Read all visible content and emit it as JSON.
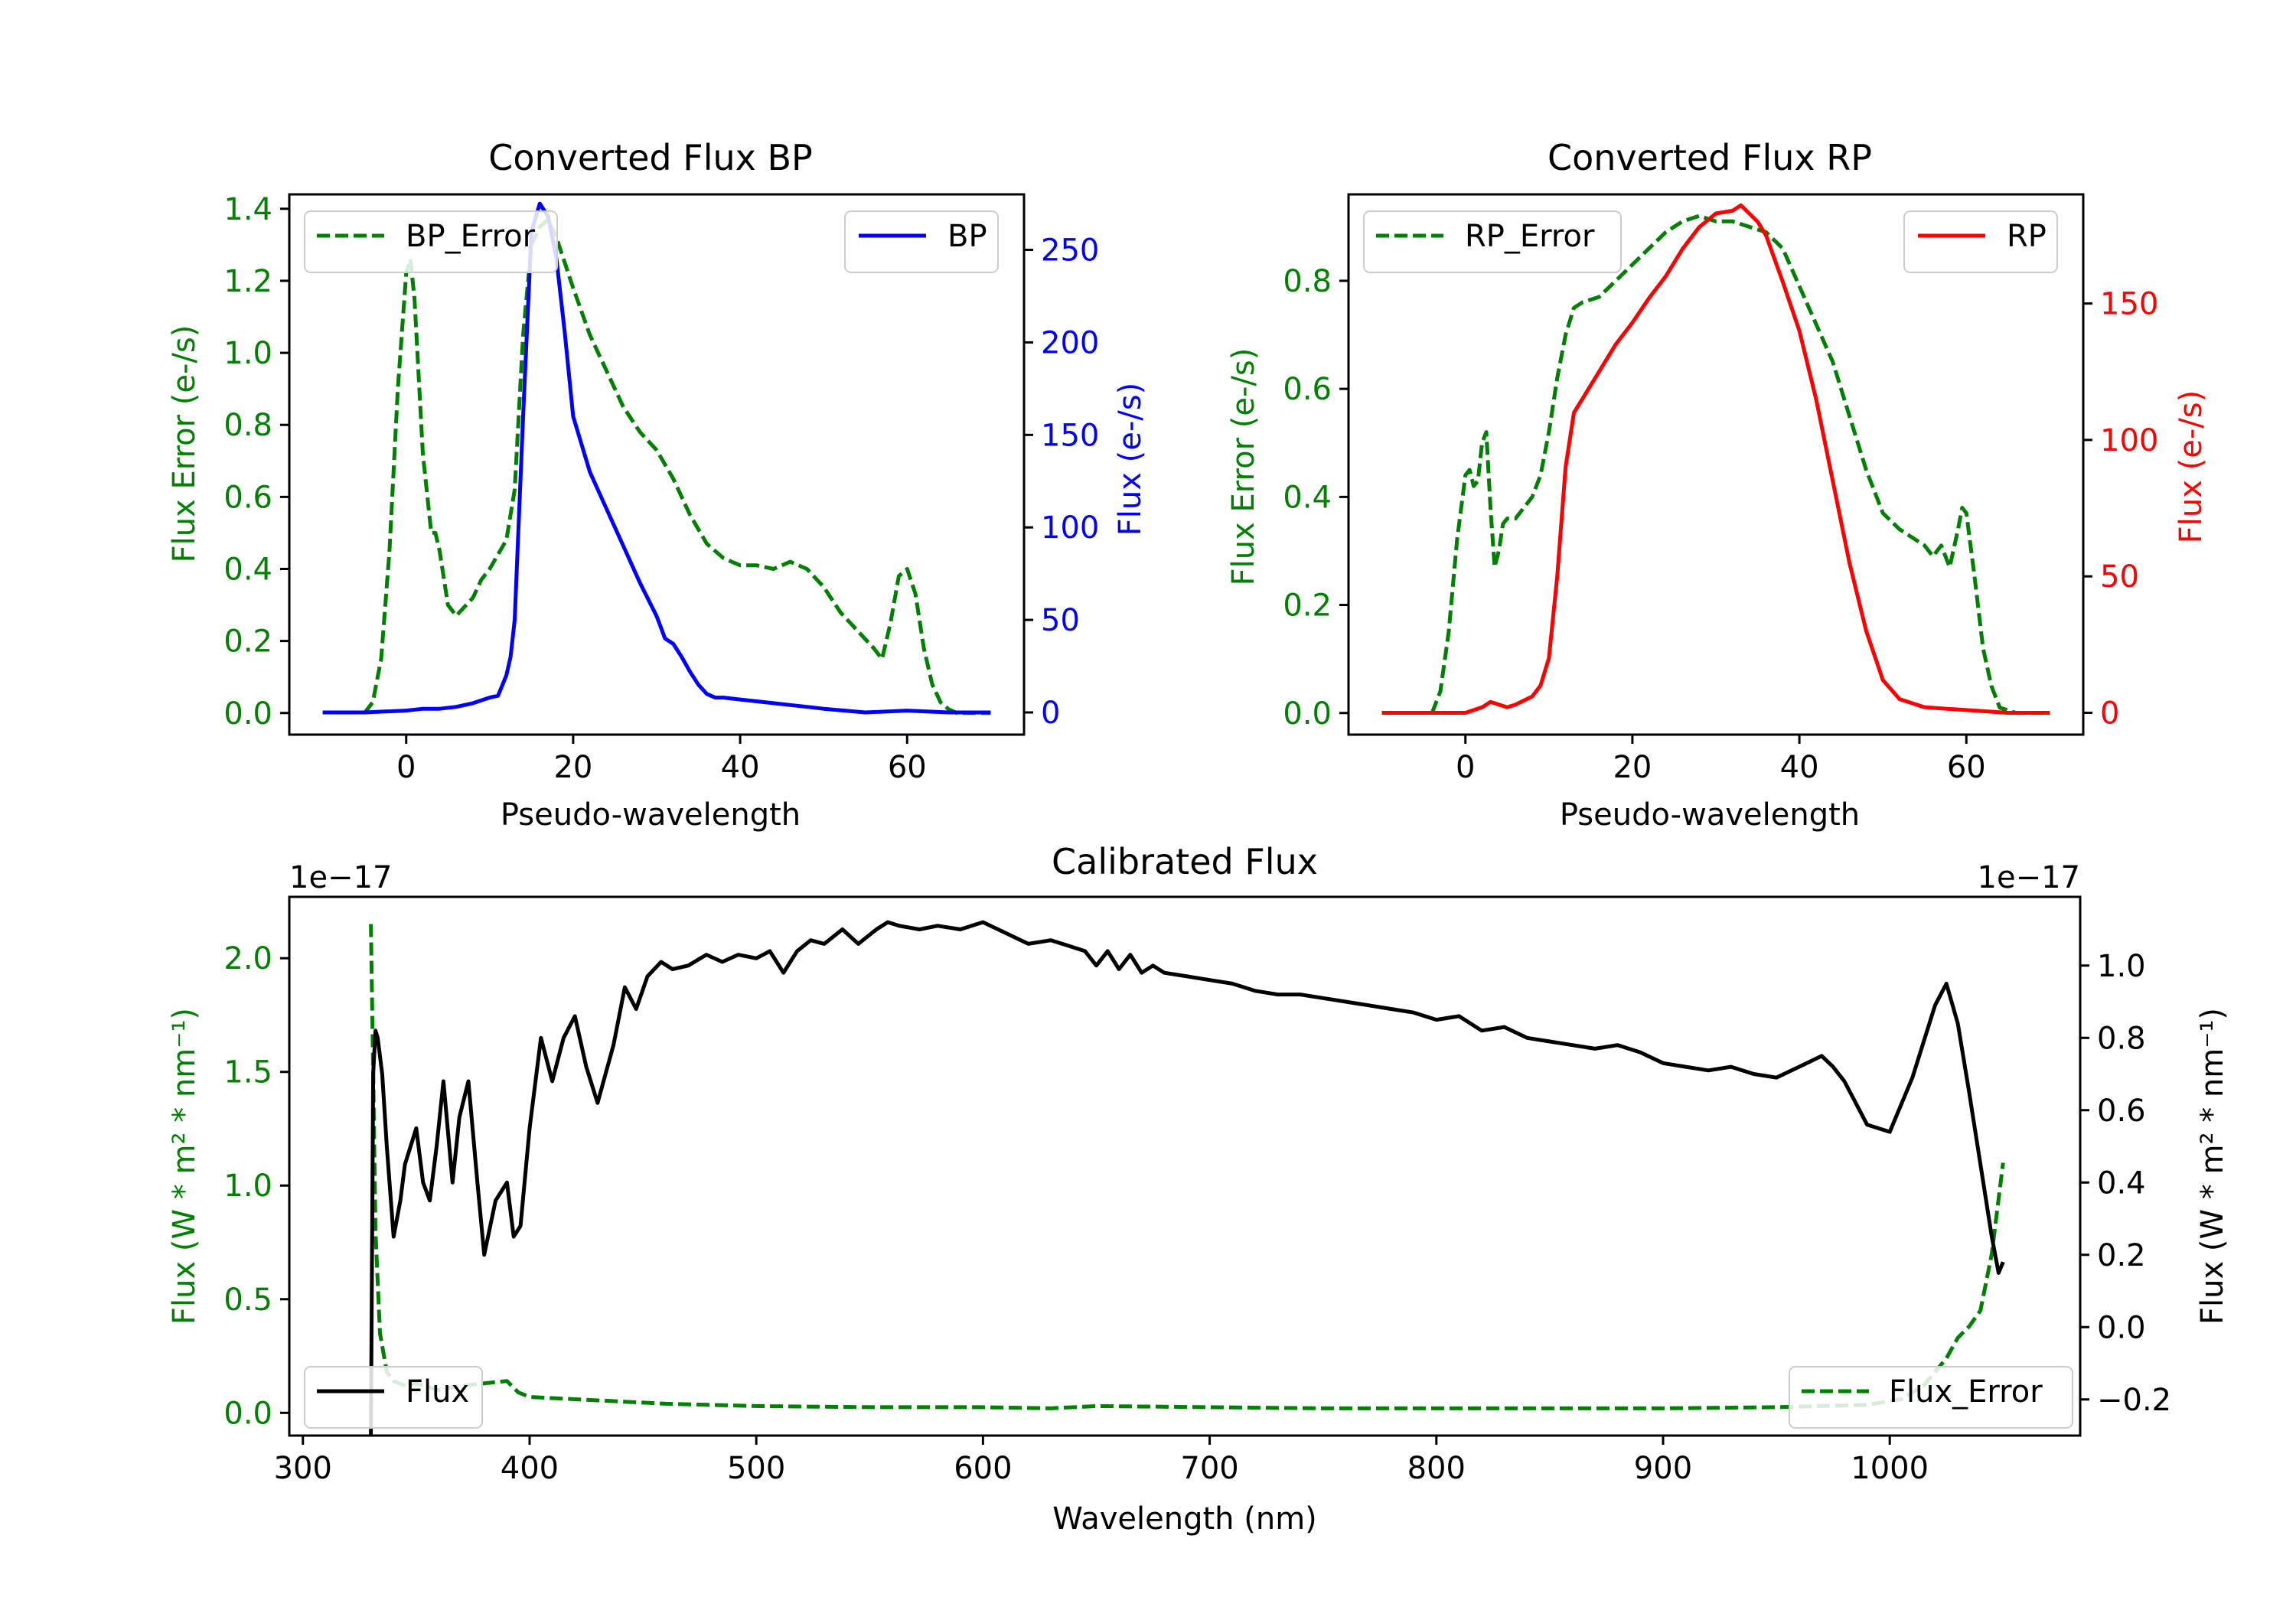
{
  "colors": {
    "green": "#008000",
    "blue": "#0000ff",
    "red": "#ff0000",
    "black": "#000000"
  },
  "chart_data": [
    {
      "id": "bp",
      "type": "line",
      "title": "Converted Flux BP",
      "xlabel": "Pseudo-wavelength",
      "ylabel_left": "Flux Error (e-/s)",
      "ylabel_right": "Flux (e-/s)",
      "xlim": [
        -14,
        74
      ],
      "ylim_left": [
        -0.06,
        1.44
      ],
      "ylim_right": [
        -12,
        280
      ],
      "xticks": [
        0,
        20,
        40,
        60
      ],
      "yticks_left": [
        0.0,
        0.2,
        0.4,
        0.6,
        0.8,
        1.0,
        1.2,
        1.4
      ],
      "yticks_left_labels": [
        "0.0",
        "0.2",
        "0.4",
        "0.6",
        "0.8",
        "1.0",
        "1.2",
        "1.4"
      ],
      "yticks_right": [
        0,
        50,
        100,
        150,
        200,
        250
      ],
      "yticks_right_labels": [
        "0",
        "50",
        "100",
        "150",
        "200",
        "250"
      ],
      "legend_left": "BP_Error",
      "legend_right": "BP",
      "series": [
        {
          "name": "BP_Error",
          "axis": "left",
          "dash": true,
          "color": "#008000",
          "x": [
            -5,
            -4,
            -3,
            -2,
            -1,
            0,
            0.5,
            1,
            2,
            3,
            3.5,
            4,
            5,
            6,
            8,
            9,
            10,
            12,
            13,
            14,
            15,
            16,
            17,
            18,
            20,
            22,
            24,
            26,
            28,
            30,
            32,
            34,
            36,
            38,
            40,
            42,
            44,
            46,
            48,
            50,
            52,
            54,
            56,
            57,
            58,
            59,
            60,
            61,
            62,
            63,
            64,
            65,
            66,
            68,
            70
          ],
          "y": [
            0.0,
            0.03,
            0.15,
            0.45,
            0.9,
            1.22,
            1.26,
            1.15,
            0.72,
            0.5,
            0.5,
            0.45,
            0.3,
            0.27,
            0.32,
            0.37,
            0.4,
            0.48,
            0.62,
            1.05,
            1.3,
            1.35,
            1.37,
            1.32,
            1.18,
            1.05,
            0.95,
            0.85,
            0.78,
            0.73,
            0.65,
            0.55,
            0.47,
            0.43,
            0.41,
            0.41,
            0.4,
            0.42,
            0.4,
            0.35,
            0.28,
            0.23,
            0.18,
            0.15,
            0.25,
            0.38,
            0.4,
            0.33,
            0.18,
            0.08,
            0.03,
            0.01,
            0.0,
            0.0,
            0.0
          ]
        },
        {
          "name": "BP",
          "axis": "right",
          "dash": false,
          "color": "#0000ff",
          "x": [
            -10,
            -5,
            0,
            2,
            4,
            6,
            8,
            10,
            11,
            12,
            12.5,
            13,
            14,
            15,
            16,
            17,
            18,
            19,
            20,
            22,
            24,
            26,
            28,
            30,
            31,
            32,
            33,
            34,
            35,
            36,
            37,
            38,
            40,
            42,
            44,
            46,
            48,
            50,
            55,
            60,
            65,
            70
          ],
          "y": [
            0,
            0,
            1,
            2,
            2,
            3,
            5,
            8,
            9,
            20,
            30,
            50,
            160,
            260,
            275,
            268,
            245,
            205,
            160,
            130,
            110,
            90,
            70,
            52,
            40,
            37,
            30,
            22,
            15,
            10,
            8,
            8,
            7,
            6,
            5,
            4,
            3,
            2,
            0,
            1,
            0,
            0
          ]
        }
      ]
    },
    {
      "id": "rp",
      "type": "line",
      "title": "Converted Flux RP",
      "xlabel": "Pseudo-wavelength",
      "ylabel_left": "Flux Error (e-/s)",
      "ylabel_right": "Flux (e-/s)",
      "xlim": [
        -14,
        74
      ],
      "ylim_left": [
        -0.04,
        0.96
      ],
      "ylim_right": [
        -8,
        190
      ],
      "xticks": [
        0,
        20,
        40,
        60
      ],
      "yticks_left": [
        0.0,
        0.2,
        0.4,
        0.6,
        0.8
      ],
      "yticks_left_labels": [
        "0.0",
        "0.2",
        "0.4",
        "0.6",
        "0.8"
      ],
      "yticks_right": [
        0,
        50,
        100,
        150
      ],
      "yticks_right_labels": [
        "0",
        "50",
        "100",
        "150"
      ],
      "legend_left": "RP_Error",
      "legend_right": "RP",
      "series": [
        {
          "name": "RP_Error",
          "axis": "left",
          "dash": true,
          "color": "#008000",
          "x": [
            -4,
            -3,
            -2,
            -1,
            0,
            0.5,
            1,
            1.5,
            2,
            2.5,
            3,
            3.5,
            4,
            4.5,
            5,
            6,
            8,
            9,
            10,
            11,
            12,
            13,
            14,
            16,
            18,
            20,
            22,
            24,
            26,
            28,
            30,
            32,
            34,
            36,
            38,
            40,
            42,
            44,
            46,
            48,
            50,
            52,
            54,
            55,
            56,
            57,
            58,
            59,
            59.5,
            60,
            61,
            62,
            63,
            64,
            66,
            70
          ],
          "y": [
            0.0,
            0.04,
            0.15,
            0.32,
            0.44,
            0.45,
            0.42,
            0.43,
            0.5,
            0.52,
            0.38,
            0.27,
            0.3,
            0.35,
            0.36,
            0.36,
            0.4,
            0.44,
            0.52,
            0.62,
            0.7,
            0.75,
            0.76,
            0.77,
            0.8,
            0.83,
            0.86,
            0.89,
            0.91,
            0.92,
            0.91,
            0.91,
            0.9,
            0.89,
            0.86,
            0.79,
            0.72,
            0.65,
            0.55,
            0.45,
            0.37,
            0.34,
            0.32,
            0.31,
            0.29,
            0.31,
            0.27,
            0.34,
            0.38,
            0.37,
            0.25,
            0.12,
            0.05,
            0.01,
            0.0,
            0.0
          ]
        },
        {
          "name": "RP",
          "axis": "right",
          "dash": false,
          "color": "#ff0000",
          "x": [
            -10,
            -5,
            0,
            2,
            3,
            4,
            5,
            6,
            8,
            9,
            10,
            11,
            12,
            13,
            14,
            16,
            18,
            20,
            22,
            24,
            26,
            28,
            30,
            32,
            33,
            34,
            35,
            36,
            38,
            40,
            42,
            44,
            46,
            48,
            50,
            52,
            55,
            60,
            65,
            70
          ],
          "y": [
            0,
            0,
            0,
            2,
            4,
            3,
            2,
            3,
            6,
            10,
            20,
            50,
            90,
            110,
            115,
            125,
            135,
            143,
            152,
            160,
            170,
            178,
            183,
            184,
            186,
            183,
            180,
            175,
            158,
            140,
            115,
            85,
            55,
            30,
            12,
            5,
            2,
            1,
            0,
            0
          ]
        }
      ]
    },
    {
      "id": "cal",
      "type": "line",
      "title": "Calibrated Flux",
      "xlabel": "Wavelength (nm)",
      "ylabel_left": "Flux (W * m² * nm⁻¹)",
      "ylabel_right": "Flux (W * m² * nm⁻¹)",
      "offset_left": "1e−17",
      "offset_right": "1e−17",
      "xlim": [
        294,
        1084
      ],
      "ylim_left": [
        -0.1,
        2.27
      ],
      "ylim_right": [
        -0.3,
        1.19
      ],
      "xticks": [
        300,
        400,
        500,
        600,
        700,
        800,
        900,
        1000
      ],
      "yticks_left": [
        0.0,
        0.5,
        1.0,
        1.5,
        2.0
      ],
      "yticks_left_labels": [
        "0.0",
        "0.5",
        "1.0",
        "1.5",
        "2.0"
      ],
      "yticks_right": [
        -0.2,
        0.0,
        0.2,
        0.4,
        0.6,
        0.8,
        1.0
      ],
      "yticks_right_labels": [
        "−0.2",
        "0.0",
        "0.2",
        "0.4",
        "0.6",
        "0.8",
        "1.0"
      ],
      "legend_left": "Flux",
      "legend_right": "Flux_Error",
      "series": [
        {
          "name": "Flux_Error",
          "axis": "left",
          "dash": true,
          "color": "#008000",
          "x": [
            330,
            331,
            332,
            334,
            337,
            340,
            345,
            350,
            360,
            370,
            380,
            390,
            395,
            400,
            420,
            440,
            460,
            500,
            550,
            600,
            630,
            650,
            700,
            750,
            800,
            850,
            900,
            950,
            990,
            1005,
            1015,
            1025,
            1030,
            1035,
            1040,
            1045,
            1050
          ],
          "y": [
            2.15,
            1.5,
            0.8,
            0.35,
            0.18,
            0.14,
            0.12,
            0.13,
            0.1,
            0.12,
            0.13,
            0.14,
            0.09,
            0.07,
            0.06,
            0.05,
            0.04,
            0.03,
            0.025,
            0.025,
            0.02,
            0.03,
            0.025,
            0.02,
            0.02,
            0.02,
            0.02,
            0.025,
            0.035,
            0.06,
            0.12,
            0.24,
            0.33,
            0.38,
            0.45,
            0.7,
            1.1
          ]
        },
        {
          "name": "Flux",
          "axis": "right",
          "dash": false,
          "color": "#000000",
          "x": [
            330,
            331,
            332,
            333,
            335,
            337,
            340,
            343,
            345,
            350,
            353,
            356,
            359,
            362,
            366,
            369,
            373,
            377,
            380,
            385,
            390,
            393,
            396,
            400,
            405,
            410,
            415,
            420,
            425,
            430,
            437,
            442,
            447,
            452,
            458,
            463,
            470,
            478,
            485,
            492,
            500,
            506,
            512,
            518,
            524,
            530,
            538,
            545,
            553,
            558,
            563,
            572,
            580,
            590,
            600,
            610,
            620,
            630,
            640,
            645,
            650,
            655,
            660,
            665,
            670,
            675,
            680,
            690,
            700,
            710,
            720,
            730,
            740,
            750,
            760,
            770,
            780,
            790,
            800,
            810,
            820,
            830,
            840,
            850,
            860,
            870,
            880,
            890,
            900,
            910,
            920,
            930,
            940,
            950,
            960,
            970,
            975,
            980,
            990,
            1000,
            1010,
            1020,
            1025,
            1030,
            1035,
            1040,
            1045,
            1048,
            1050
          ],
          "y": [
            -0.3,
            0.7,
            0.82,
            0.8,
            0.7,
            0.5,
            0.25,
            0.35,
            0.45,
            0.55,
            0.4,
            0.35,
            0.5,
            0.68,
            0.4,
            0.58,
            0.68,
            0.4,
            0.2,
            0.35,
            0.4,
            0.25,
            0.28,
            0.55,
            0.8,
            0.68,
            0.8,
            0.86,
            0.72,
            0.62,
            0.78,
            0.94,
            0.88,
            0.97,
            1.01,
            0.99,
            1.0,
            1.03,
            1.01,
            1.03,
            1.02,
            1.04,
            0.98,
            1.04,
            1.07,
            1.06,
            1.1,
            1.06,
            1.1,
            1.12,
            1.11,
            1.1,
            1.11,
            1.1,
            1.12,
            1.09,
            1.06,
            1.07,
            1.05,
            1.04,
            1.0,
            1.04,
            0.99,
            1.03,
            0.98,
            1.0,
            0.98,
            0.97,
            0.96,
            0.95,
            0.93,
            0.92,
            0.92,
            0.91,
            0.9,
            0.89,
            0.88,
            0.87,
            0.85,
            0.86,
            0.82,
            0.83,
            0.8,
            0.79,
            0.78,
            0.77,
            0.78,
            0.76,
            0.73,
            0.72,
            0.71,
            0.72,
            0.7,
            0.69,
            0.72,
            0.75,
            0.72,
            0.68,
            0.56,
            0.54,
            0.69,
            0.89,
            0.95,
            0.84,
            0.65,
            0.45,
            0.25,
            0.15,
            0.18
          ]
        }
      ]
    }
  ]
}
